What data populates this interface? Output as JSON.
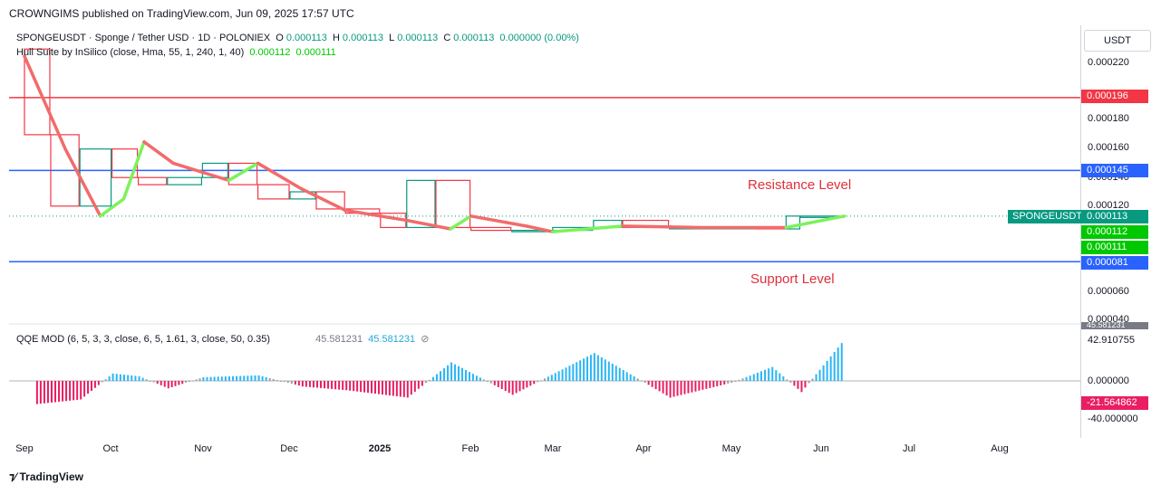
{
  "header": {
    "publisher": "CROWNGIMS published on TradingView.com, Jun 09, 2025 17:57 UTC"
  },
  "legend": {
    "symbol": "SPONGEUSDT · Sponge / Tether USD · 1D · POLONIEX",
    "o_label": "O",
    "o_value": "0.000113",
    "h_label": "H",
    "h_value": "0.000113",
    "l_label": "L",
    "l_value": "0.000113",
    "c_label": "C",
    "c_value": "0.000113",
    "change": "0.000000 (0.00%)",
    "hull_name": "Hull Suite by InSilico (close, Hma, 55, 1, 240, 1, 40)",
    "hull_v1": "0.000112",
    "hull_v2": "0.000111",
    "qqe_name": "QQE MOD (6, 5, 3, 3, close, 6, 5, 1.61, 3, close, 50, 0.35)",
    "qqe_v1": "45.581231",
    "qqe_v2": "45.581231"
  },
  "price_axis": {
    "currency": "USDT",
    "ticks": [
      "0.000220",
      "0.000180",
      "0.000160",
      "0.000140",
      "0.000120",
      "0.000060",
      "0.000040"
    ],
    "tags": [
      {
        "text": "0.000196",
        "color": "#f23645"
      },
      {
        "text": "0.000145",
        "color": "#2962ff"
      },
      {
        "text": "0.000113",
        "color": "#089981"
      },
      {
        "text": "0.000112",
        "color": "#00c800"
      },
      {
        "text": "0.000111",
        "color": "#00c800"
      },
      {
        "text": "0.000081",
        "color": "#2962ff"
      }
    ],
    "symbol_tag": "SPONGEUSDT"
  },
  "qqe_axis": {
    "ticks": [
      "42.910755",
      "0.000000",
      "-40.000000"
    ],
    "tag": "-21.564862",
    "top_tag": "45.581231"
  },
  "time_axis": [
    "Sep",
    "Oct",
    "Nov",
    "Dec",
    "2025",
    "Feb",
    "Mar",
    "Apr",
    "May",
    "Jun",
    "Jul",
    "Aug"
  ],
  "annotations": {
    "resistance": "Resistance Level",
    "support": "Support Level"
  },
  "footer": {
    "brand": "TradingView"
  },
  "chart_data": {
    "type": "candlestick",
    "symbol": "SPONGEUSDT",
    "timeframe": "1D",
    "horizontal_levels": [
      {
        "price": 0.000196,
        "color": "#f23645"
      },
      {
        "price": 0.000145,
        "color": "#2962ff"
      },
      {
        "price": 8.1e-05,
        "color": "#2962ff"
      }
    ],
    "price_series": [
      {
        "date": "2024-09-01",
        "close": 0.00023
      },
      {
        "date": "2024-09-10",
        "close": 0.00017
      },
      {
        "date": "2024-09-20",
        "close": 0.00012
      },
      {
        "date": "2024-10-01",
        "close": 0.00016
      },
      {
        "date": "2024-10-10",
        "close": 0.00014
      },
      {
        "date": "2024-10-20",
        "close": 0.000135
      },
      {
        "date": "2024-11-01",
        "close": 0.00014
      },
      {
        "date": "2024-11-10",
        "close": 0.00015
      },
      {
        "date": "2024-11-20",
        "close": 0.000135
      },
      {
        "date": "2024-12-01",
        "close": 0.000125
      },
      {
        "date": "2024-12-10",
        "close": 0.00013
      },
      {
        "date": "2024-12-20",
        "close": 0.000118
      },
      {
        "date": "2025-01-01",
        "close": 0.000115
      },
      {
        "date": "2025-01-10",
        "close": 0.000105
      },
      {
        "date": "2025-01-20",
        "close": 0.000138
      },
      {
        "date": "2025-02-01",
        "close": 0.000105
      },
      {
        "date": "2025-02-15",
        "close": 0.000103
      },
      {
        "date": "2025-03-01",
        "close": 0.000103
      },
      {
        "date": "2025-03-15",
        "close": 0.000105
      },
      {
        "date": "2025-03-25",
        "close": 0.00011
      },
      {
        "date": "2025-04-10",
        "close": 0.000105
      },
      {
        "date": "2025-04-25",
        "close": 0.000105
      },
      {
        "date": "2025-05-10",
        "close": 0.000105
      },
      {
        "date": "2025-05-20",
        "close": 0.000104
      },
      {
        "date": "2025-05-25",
        "close": 0.000113
      },
      {
        "date": "2025-06-09",
        "close": 0.000113
      }
    ],
    "hull_series": [
      {
        "date": "2024-09-01",
        "value": 0.000225,
        "trend": "down"
      },
      {
        "date": "2024-09-15",
        "value": 0.00016,
        "trend": "down"
      },
      {
        "date": "2024-09-27",
        "value": 0.000113,
        "trend": "down"
      },
      {
        "date": "2024-10-05",
        "value": 0.000125,
        "trend": "up"
      },
      {
        "date": "2024-10-12",
        "value": 0.000165,
        "trend": "up"
      },
      {
        "date": "2024-10-22",
        "value": 0.00015,
        "trend": "down"
      },
      {
        "date": "2024-11-10",
        "value": 0.000138,
        "trend": "down"
      },
      {
        "date": "2024-11-20",
        "value": 0.00015,
        "trend": "up"
      },
      {
        "date": "2024-12-05",
        "value": 0.000132,
        "trend": "down"
      },
      {
        "date": "2024-12-20",
        "value": 0.000117,
        "trend": "down"
      },
      {
        "date": "2025-01-10",
        "value": 0.00011,
        "trend": "down"
      },
      {
        "date": "2025-01-25",
        "value": 0.000104,
        "trend": "down"
      },
      {
        "date": "2025-02-01",
        "value": 0.000113,
        "trend": "up"
      },
      {
        "date": "2025-02-20",
        "value": 0.000106,
        "trend": "down"
      },
      {
        "date": "2025-03-01",
        "value": 0.000102,
        "trend": "down"
      },
      {
        "date": "2025-03-25",
        "value": 0.000106,
        "trend": "up"
      },
      {
        "date": "2025-04-20",
        "value": 0.000105,
        "trend": "down"
      },
      {
        "date": "2025-05-20",
        "value": 0.000105,
        "trend": "down"
      },
      {
        "date": "2025-06-09",
        "value": 0.000113,
        "trend": "up"
      }
    ],
    "qqe_histogram": [
      {
        "date": "2024-09-05",
        "value": -25
      },
      {
        "date": "2024-09-20",
        "value": -20
      },
      {
        "date": "2024-10-01",
        "value": 8
      },
      {
        "date": "2024-10-10",
        "value": 5
      },
      {
        "date": "2024-10-20",
        "value": -8
      },
      {
        "date": "2024-11-01",
        "value": 4
      },
      {
        "date": "2024-11-20",
        "value": 6
      },
      {
        "date": "2024-12-05",
        "value": -6
      },
      {
        "date": "2024-12-20",
        "value": -10
      },
      {
        "date": "2025-01-10",
        "value": -18
      },
      {
        "date": "2025-01-25",
        "value": 20
      },
      {
        "date": "2025-02-15",
        "value": -15
      },
      {
        "date": "2025-03-15",
        "value": 30
      },
      {
        "date": "2025-04-10",
        "value": -18
      },
      {
        "date": "2025-05-01",
        "value": -2
      },
      {
        "date": "2025-05-15",
        "value": 15
      },
      {
        "date": "2025-05-25",
        "value": -12
      },
      {
        "date": "2025-06-09",
        "value": 45.581231
      }
    ]
  }
}
